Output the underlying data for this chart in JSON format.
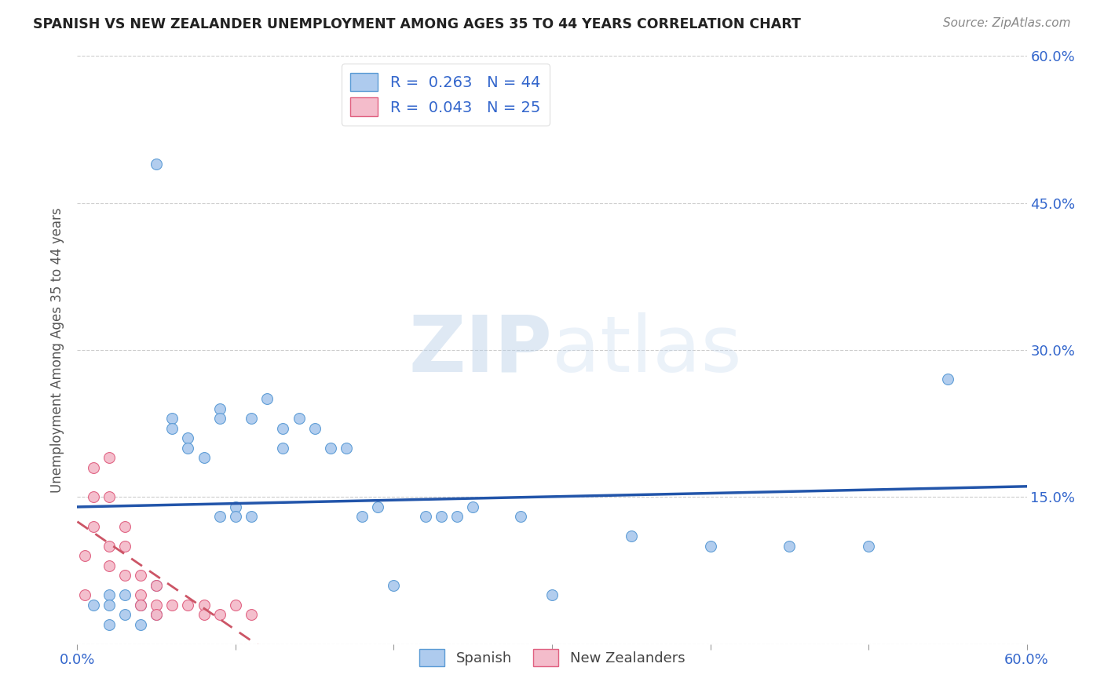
{
  "title": "SPANISH VS NEW ZEALANDER UNEMPLOYMENT AMONG AGES 35 TO 44 YEARS CORRELATION CHART",
  "source": "Source: ZipAtlas.com",
  "ylabel": "Unemployment Among Ages 35 to 44 years",
  "xlim": [
    0.0,
    0.6
  ],
  "ylim": [
    0.0,
    0.6
  ],
  "xticks": [
    0.0,
    0.1,
    0.2,
    0.3,
    0.4,
    0.5,
    0.6
  ],
  "yticks": [
    0.0,
    0.15,
    0.3,
    0.45,
    0.6
  ],
  "spanish_color": "#aecbee",
  "nz_color": "#f4bccb",
  "spanish_edge": "#5b9bd5",
  "nz_edge": "#e06080",
  "line_blue": "#2255aa",
  "line_pink": "#cc5566",
  "watermark_zip": "ZIP",
  "watermark_atlas": "atlas",
  "spanish_r": 0.263,
  "spanish_n": 44,
  "nz_r": 0.043,
  "nz_n": 25,
  "spanish_x": [
    0.01,
    0.02,
    0.02,
    0.02,
    0.03,
    0.03,
    0.04,
    0.04,
    0.05,
    0.05,
    0.05,
    0.06,
    0.06,
    0.07,
    0.07,
    0.08,
    0.09,
    0.09,
    0.09,
    0.1,
    0.1,
    0.11,
    0.11,
    0.12,
    0.13,
    0.13,
    0.14,
    0.15,
    0.16,
    0.17,
    0.18,
    0.19,
    0.2,
    0.22,
    0.23,
    0.24,
    0.25,
    0.28,
    0.3,
    0.35,
    0.4,
    0.45,
    0.5,
    0.55
  ],
  "spanish_y": [
    0.04,
    0.05,
    0.04,
    0.02,
    0.05,
    0.03,
    0.04,
    0.02,
    0.49,
    0.06,
    0.03,
    0.23,
    0.22,
    0.21,
    0.2,
    0.19,
    0.24,
    0.23,
    0.13,
    0.14,
    0.13,
    0.23,
    0.13,
    0.25,
    0.22,
    0.2,
    0.23,
    0.22,
    0.2,
    0.2,
    0.13,
    0.14,
    0.06,
    0.13,
    0.13,
    0.13,
    0.14,
    0.13,
    0.05,
    0.11,
    0.1,
    0.1,
    0.1,
    0.27
  ],
  "nz_x": [
    0.005,
    0.005,
    0.01,
    0.01,
    0.01,
    0.02,
    0.02,
    0.02,
    0.02,
    0.03,
    0.03,
    0.03,
    0.04,
    0.04,
    0.04,
    0.05,
    0.05,
    0.05,
    0.06,
    0.07,
    0.08,
    0.08,
    0.09,
    0.1,
    0.11
  ],
  "nz_y": [
    0.09,
    0.05,
    0.18,
    0.15,
    0.12,
    0.19,
    0.15,
    0.1,
    0.08,
    0.12,
    0.1,
    0.07,
    0.07,
    0.05,
    0.04,
    0.06,
    0.04,
    0.03,
    0.04,
    0.04,
    0.04,
    0.03,
    0.03,
    0.04,
    0.03
  ]
}
